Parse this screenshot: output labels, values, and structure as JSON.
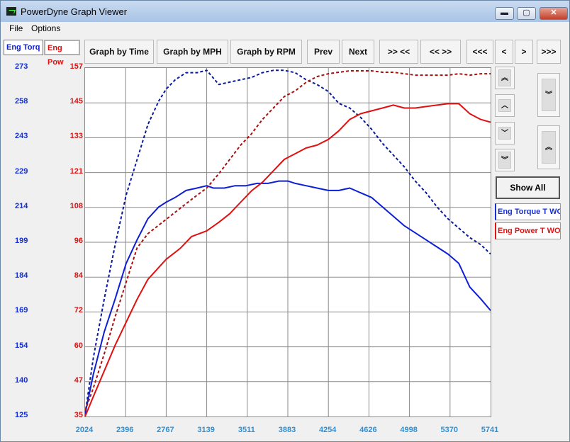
{
  "window": {
    "title": "PowerDyne Graph Viewer",
    "min_label": "▬",
    "max_label": "▢",
    "close_label": "✕"
  },
  "menu": [
    "File",
    "Options"
  ],
  "tabs": {
    "torque": "Eng Torq",
    "power": "Eng Pow"
  },
  "toolbar": {
    "by_time": "Graph by Time",
    "by_mph": "Graph by MPH",
    "by_rpm": "Graph by RPM",
    "prev": "Prev",
    "next": "Next",
    "zoom_in": ">> <<",
    "zoom_out": "<< >>",
    "first": "<<<",
    "left": "<",
    "right": ">",
    "last": ">>>"
  },
  "side": {
    "scroll_top": "︽",
    "up": "︿",
    "down": "﹀",
    "scroll_bottom": "︾",
    "expand": "︾",
    "collapse": "︽",
    "show_all": "Show All",
    "legend_torque": "Eng Torque T WO",
    "legend_power": "Eng Power T WO"
  },
  "colors": {
    "torque": "#0d1fd4",
    "torque_dashed": "#0a1a9c",
    "power": "#e01010",
    "power_dashed": "#a81010",
    "grid": "#8a8a8a"
  },
  "chart_data": {
    "type": "line",
    "x_ticks": [
      "2024",
      "2396",
      "2767",
      "3139",
      "3511",
      "3883",
      "4254",
      "4626",
      "4998",
      "5370",
      "5741"
    ],
    "y_ticks_torque": [
      "273",
      "258",
      "243",
      "229",
      "214",
      "199",
      "184",
      "169",
      "154",
      "140",
      "125"
    ],
    "y_ticks_power": [
      "157",
      "145",
      "133",
      "121",
      "108",
      "96",
      "84",
      "72",
      "60",
      "47",
      "35"
    ],
    "xlim": [
      2024,
      5741
    ],
    "ylim_torque": [
      125,
      273
    ],
    "ylim_power": [
      35,
      157
    ],
    "series": [
      {
        "axis": "torque",
        "style": "dashed",
        "x": [
          2024,
          2100,
          2200,
          2300,
          2400,
          2500,
          2600,
          2700,
          2767,
          2850,
          2950,
          3050,
          3139,
          3250,
          3350,
          3450,
          3550,
          3650,
          3750,
          3850,
          3950,
          4050,
          4150,
          4254,
          4350,
          4450,
          4550,
          4650,
          4750,
          4850,
          4950,
          5050,
          5150,
          5250,
          5350,
          5450,
          5550,
          5650,
          5741
        ],
        "y": [
          126,
          150,
          175,
          198,
          219,
          234,
          249,
          259,
          264,
          268,
          271,
          271,
          272,
          266,
          267,
          268,
          269,
          271,
          272,
          272,
          271,
          268,
          266,
          263,
          258,
          256,
          252,
          247,
          241,
          236,
          231,
          225,
          220,
          214,
          209,
          205,
          201,
          198,
          194
        ]
      },
      {
        "axis": "torque",
        "style": "solid",
        "x": [
          2024,
          2100,
          2200,
          2300,
          2400,
          2500,
          2600,
          2700,
          2767,
          2850,
          2950,
          3050,
          3139,
          3200,
          3300,
          3400,
          3500,
          3600,
          3700,
          3800,
          3883,
          3950,
          4050,
          4150,
          4254,
          4350,
          4450,
          4550,
          4650,
          4750,
          4850,
          4950,
          5050,
          5150,
          5250,
          5350,
          5450,
          5550,
          5650,
          5741
        ],
        "y": [
          126,
          143,
          161,
          175,
          190,
          200,
          209,
          214,
          216,
          218,
          221,
          222,
          223,
          222,
          222,
          223,
          223,
          224,
          224,
          225,
          225,
          224,
          223,
          222,
          221,
          221,
          222,
          220,
          218,
          214,
          210,
          206,
          203,
          200,
          197,
          194,
          190,
          180,
          175,
          170
        ]
      },
      {
        "axis": "power",
        "style": "dashed",
        "x": [
          2024,
          2100,
          2200,
          2300,
          2400,
          2500,
          2600,
          2767,
          2900,
          3000,
          3139,
          3250,
          3350,
          3450,
          3550,
          3650,
          3750,
          3850,
          3950,
          4050,
          4150,
          4254,
          4350,
          4450,
          4550,
          4650,
          4750,
          4850,
          4950,
          5050,
          5150,
          5250,
          5350,
          5450,
          5550,
          5650,
          5741
        ],
        "y": [
          37,
          45,
          57,
          70,
          82,
          94,
          99,
          104,
          108,
          111,
          115,
          120,
          125,
          130,
          134,
          139,
          143,
          147,
          149,
          152,
          154,
          155,
          155.5,
          156,
          156,
          156,
          155.5,
          155.5,
          155,
          154.5,
          154.5,
          154.5,
          154.5,
          155,
          154.5,
          155,
          155
        ]
      },
      {
        "axis": "power",
        "style": "solid",
        "x": [
          2024,
          2100,
          2200,
          2300,
          2400,
          2500,
          2600,
          2767,
          2900,
          3000,
          3139,
          3250,
          3350,
          3450,
          3550,
          3650,
          3750,
          3850,
          3950,
          4050,
          4150,
          4254,
          4350,
          4450,
          4550,
          4650,
          4750,
          4850,
          4950,
          5050,
          5150,
          5250,
          5350,
          5450,
          5550,
          5650,
          5741
        ],
        "y": [
          35,
          42,
          51,
          60,
          68,
          76,
          83,
          90,
          94,
          98,
          100,
          103,
          106,
          110,
          114,
          117,
          121,
          125,
          127,
          129,
          130,
          132,
          135,
          139,
          141,
          142,
          143,
          144,
          143,
          143,
          143.5,
          144,
          144.5,
          144.5,
          141,
          139,
          138
        ]
      }
    ]
  }
}
